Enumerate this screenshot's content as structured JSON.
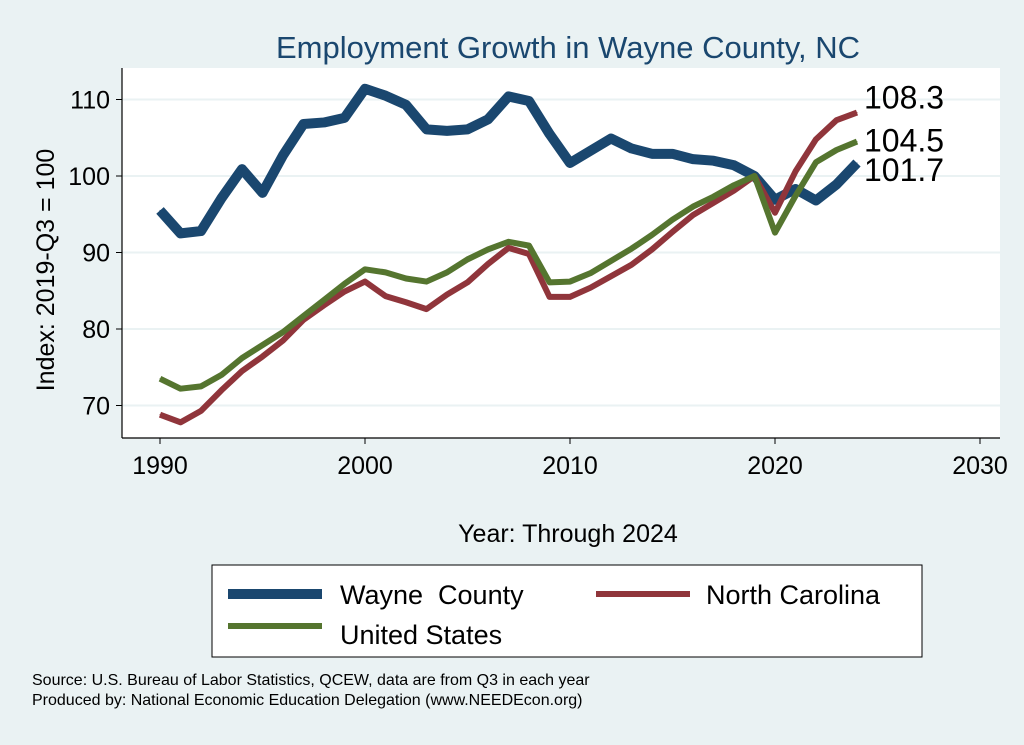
{
  "chart_data": {
    "type": "line",
    "title": "Employment Growth in Wayne County, NC",
    "xlabel": "Year: Through 2024",
    "ylabel": "Index: 2019-Q3 = 100",
    "xlim": [
      1990,
      2030
    ],
    "ylim": [
      65,
      113
    ],
    "xticks": [
      1990,
      2000,
      2010,
      2020,
      2030
    ],
    "yticks": [
      70,
      80,
      90,
      100,
      110
    ],
    "grid": true,
    "legend_position": "bottom",
    "x": [
      1990,
      1991,
      1992,
      1993,
      1994,
      1995,
      1996,
      1997,
      1998,
      1999,
      2000,
      2001,
      2002,
      2003,
      2004,
      2005,
      2006,
      2007,
      2008,
      2009,
      2010,
      2011,
      2012,
      2013,
      2014,
      2015,
      2016,
      2017,
      2018,
      2019,
      2020,
      2021,
      2022,
      2023,
      2024
    ],
    "series": [
      {
        "name": "Wayne  County",
        "color": "#1a476f",
        "end_label": "101.7",
        "values": [
          95.5,
          92.5,
          92.8,
          97.1,
          100.9,
          97.8,
          102.7,
          106.8,
          107.0,
          107.6,
          111.4,
          110.5,
          109.3,
          106.1,
          105.9,
          106.1,
          107.4,
          110.4,
          109.8,
          105.5,
          101.7,
          103.3,
          104.9,
          103.6,
          102.9,
          102.9,
          102.2,
          102.0,
          101.4,
          100.0,
          96.9,
          98.3,
          96.8,
          98.9,
          101.7
        ]
      },
      {
        "name": "North Carolina",
        "color": "#90353b",
        "end_label": "108.3",
        "values": [
          68.8,
          67.8,
          69.3,
          72.0,
          74.5,
          76.4,
          78.5,
          81.2,
          83.1,
          84.9,
          86.2,
          84.3,
          83.5,
          82.6,
          84.5,
          86.1,
          88.5,
          90.6,
          89.8,
          84.2,
          84.2,
          85.4,
          86.9,
          88.4,
          90.4,
          92.7,
          94.9,
          96.5,
          98.1,
          100.0,
          95.2,
          100.6,
          104.8,
          107.3,
          108.3
        ]
      },
      {
        "name": "United States",
        "color": "#55752f",
        "end_label": "104.5",
        "values": [
          73.5,
          72.2,
          72.5,
          74.0,
          76.2,
          77.9,
          79.6,
          81.7,
          83.8,
          85.9,
          87.8,
          87.4,
          86.6,
          86.2,
          87.4,
          89.1,
          90.4,
          91.4,
          90.9,
          86.1,
          86.2,
          87.3,
          88.9,
          90.5,
          92.3,
          94.3,
          96.0,
          97.3,
          98.8,
          100.0,
          92.6,
          97.4,
          101.8,
          103.4,
          104.5
        ]
      }
    ]
  },
  "footer": {
    "source": "Source: U.S. Bureau of Labor Statistics, QCEW, data are from Q3 in each year",
    "produced": "Produced by: National Economic Education Delegation (www.NEEDEcon.org)"
  }
}
